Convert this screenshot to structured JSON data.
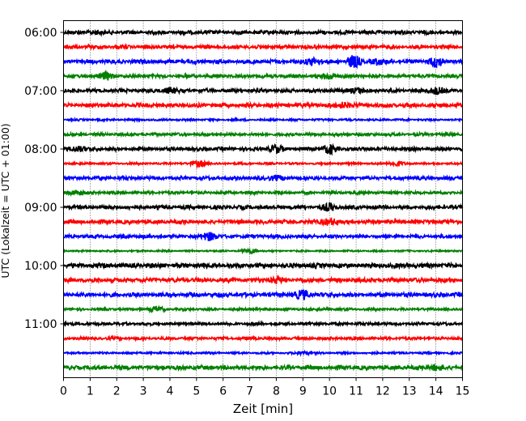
{
  "chart_data": {
    "type": "line",
    "title": "",
    "xlabel": "Zeit  [min]",
    "ylabel": "UTC (Lokalzeit = UTC + 01:00)",
    "xlim": [
      0,
      15
    ],
    "x_ticks": [
      "0",
      "1",
      "2",
      "3",
      "4",
      "5",
      "6",
      "7",
      "8",
      "9",
      "10",
      "11",
      "12",
      "13",
      "14",
      "15"
    ],
    "y_ticks": [
      "06:00",
      "07:00",
      "08:00",
      "09:00",
      "10:00",
      "11:00"
    ],
    "grid": "vertical dotted at each minute",
    "colors": {
      "black": "#000000",
      "red": "#ff0000",
      "blue": "#0000ff",
      "green": "#008000"
    },
    "trace_color_cycle": [
      "black",
      "red",
      "blue",
      "green"
    ],
    "series": [
      {
        "utc_start": "06:00",
        "color": "black",
        "events": [
          [
            1.2,
            1.5
          ]
        ]
      },
      {
        "utc_start": "06:15",
        "color": "red",
        "events": []
      },
      {
        "utc_start": "06:30",
        "color": "blue",
        "events": [
          [
            9.4,
            4
          ],
          [
            10.9,
            7
          ],
          [
            11.8,
            3
          ],
          [
            14.0,
            6
          ]
        ]
      },
      {
        "utc_start": "06:45",
        "color": "green",
        "events": [
          [
            1.6,
            4
          ],
          [
            10.0,
            4
          ]
        ]
      },
      {
        "utc_start": "07:00",
        "color": "black",
        "events": [
          [
            4.0,
            3
          ],
          [
            11.0,
            3
          ],
          [
            14.0,
            4
          ]
        ]
      },
      {
        "utc_start": "07:15",
        "color": "red",
        "events": [
          [
            10.5,
            3
          ]
        ]
      },
      {
        "utc_start": "07:30",
        "color": "blue",
        "events": []
      },
      {
        "utc_start": "07:45",
        "color": "green",
        "events": []
      },
      {
        "utc_start": "08:00",
        "color": "black",
        "events": [
          [
            0.5,
            3
          ],
          [
            8.0,
            4
          ],
          [
            10.0,
            5
          ]
        ]
      },
      {
        "utc_start": "08:15",
        "color": "red",
        "events": [
          [
            5.1,
            4
          ],
          [
            12.5,
            3
          ]
        ]
      },
      {
        "utc_start": "08:30",
        "color": "blue",
        "events": [
          [
            8.0,
            3
          ]
        ]
      },
      {
        "utc_start": "08:45",
        "color": "green",
        "events": [
          [
            0.5,
            3
          ]
        ]
      },
      {
        "utc_start": "09:00",
        "color": "black",
        "events": [
          [
            10.0,
            4
          ]
        ]
      },
      {
        "utc_start": "09:15",
        "color": "red",
        "events": [
          [
            10.0,
            4
          ]
        ]
      },
      {
        "utc_start": "09:30",
        "color": "blue",
        "events": [
          [
            5.5,
            5
          ]
        ]
      },
      {
        "utc_start": "09:45",
        "color": "green",
        "events": [
          [
            7.0,
            3
          ]
        ]
      },
      {
        "utc_start": "10:00",
        "color": "black",
        "events": []
      },
      {
        "utc_start": "10:15",
        "color": "red",
        "events": [
          [
            8.0,
            3
          ]
        ]
      },
      {
        "utc_start": "10:30",
        "color": "blue",
        "events": [
          [
            9.0,
            5
          ]
        ]
      },
      {
        "utc_start": "10:45",
        "color": "green",
        "events": [
          [
            3.5,
            3
          ]
        ]
      },
      {
        "utc_start": "11:00",
        "color": "black",
        "events": []
      },
      {
        "utc_start": "11:15",
        "color": "red",
        "events": []
      },
      {
        "utc_start": "11:30",
        "color": "blue",
        "events": [
          [
            9.0,
            2
          ]
        ]
      },
      {
        "utc_start": "11:45",
        "color": "green",
        "events": [
          [
            14.0,
            3
          ]
        ]
      }
    ]
  }
}
